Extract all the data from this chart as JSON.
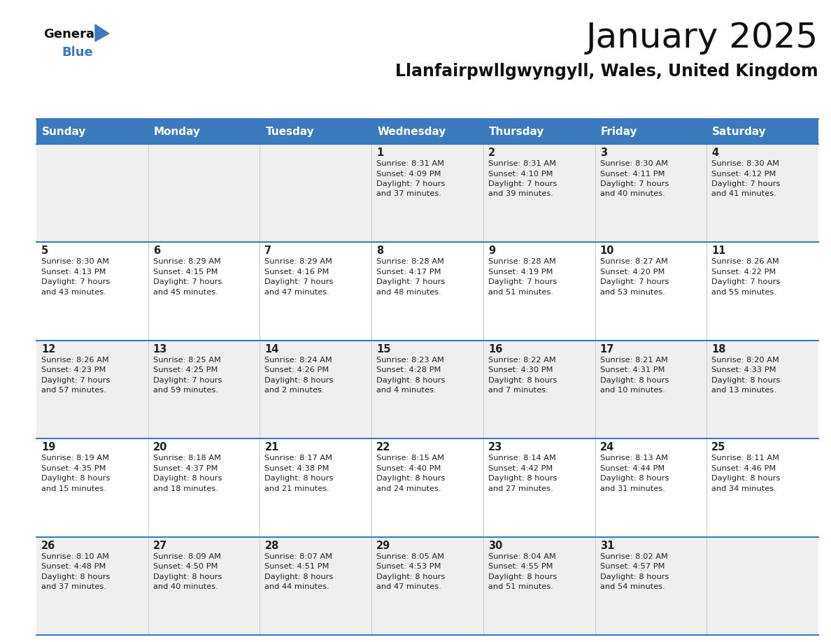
{
  "title": "January 2025",
  "subtitle": "Llanfairpwllgwyngyll, Wales, United Kingdom",
  "header_bg": "#3a7bbf",
  "header_text": "#ffffff",
  "day_names": [
    "Sunday",
    "Monday",
    "Tuesday",
    "Wednesday",
    "Thursday",
    "Friday",
    "Saturday"
  ],
  "row_bg_odd": "#efefef",
  "row_bg_even": "#ffffff",
  "cell_text_color": "#222222",
  "border_color": "#3a7bbf",
  "logo_color": "#3a7bbf",
  "days": [
    {
      "day": 1,
      "col": 3,
      "row": 0,
      "sunrise": "8:31 AM",
      "sunset": "4:09 PM",
      "daylight_h": "7 hours",
      "daylight_m": "and 37 minutes."
    },
    {
      "day": 2,
      "col": 4,
      "row": 0,
      "sunrise": "8:31 AM",
      "sunset": "4:10 PM",
      "daylight_h": "7 hours",
      "daylight_m": "and 39 minutes."
    },
    {
      "day": 3,
      "col": 5,
      "row": 0,
      "sunrise": "8:30 AM",
      "sunset": "4:11 PM",
      "daylight_h": "7 hours",
      "daylight_m": "and 40 minutes."
    },
    {
      "day": 4,
      "col": 6,
      "row": 0,
      "sunrise": "8:30 AM",
      "sunset": "4:12 PM",
      "daylight_h": "7 hours",
      "daylight_m": "and 41 minutes."
    },
    {
      "day": 5,
      "col": 0,
      "row": 1,
      "sunrise": "8:30 AM",
      "sunset": "4:13 PM",
      "daylight_h": "7 hours",
      "daylight_m": "and 43 minutes."
    },
    {
      "day": 6,
      "col": 1,
      "row": 1,
      "sunrise": "8:29 AM",
      "sunset": "4:15 PM",
      "daylight_h": "7 hours",
      "daylight_m": "and 45 minutes."
    },
    {
      "day": 7,
      "col": 2,
      "row": 1,
      "sunrise": "8:29 AM",
      "sunset": "4:16 PM",
      "daylight_h": "7 hours",
      "daylight_m": "and 47 minutes."
    },
    {
      "day": 8,
      "col": 3,
      "row": 1,
      "sunrise": "8:28 AM",
      "sunset": "4:17 PM",
      "daylight_h": "7 hours",
      "daylight_m": "and 48 minutes."
    },
    {
      "day": 9,
      "col": 4,
      "row": 1,
      "sunrise": "8:28 AM",
      "sunset": "4:19 PM",
      "daylight_h": "7 hours",
      "daylight_m": "and 51 minutes."
    },
    {
      "day": 10,
      "col": 5,
      "row": 1,
      "sunrise": "8:27 AM",
      "sunset": "4:20 PM",
      "daylight_h": "7 hours",
      "daylight_m": "and 53 minutes."
    },
    {
      "day": 11,
      "col": 6,
      "row": 1,
      "sunrise": "8:26 AM",
      "sunset": "4:22 PM",
      "daylight_h": "7 hours",
      "daylight_m": "and 55 minutes."
    },
    {
      "day": 12,
      "col": 0,
      "row": 2,
      "sunrise": "8:26 AM",
      "sunset": "4:23 PM",
      "daylight_h": "7 hours",
      "daylight_m": "and 57 minutes."
    },
    {
      "day": 13,
      "col": 1,
      "row": 2,
      "sunrise": "8:25 AM",
      "sunset": "4:25 PM",
      "daylight_h": "7 hours",
      "daylight_m": "and 59 minutes."
    },
    {
      "day": 14,
      "col": 2,
      "row": 2,
      "sunrise": "8:24 AM",
      "sunset": "4:26 PM",
      "daylight_h": "8 hours",
      "daylight_m": "and 2 minutes."
    },
    {
      "day": 15,
      "col": 3,
      "row": 2,
      "sunrise": "8:23 AM",
      "sunset": "4:28 PM",
      "daylight_h": "8 hours",
      "daylight_m": "and 4 minutes."
    },
    {
      "day": 16,
      "col": 4,
      "row": 2,
      "sunrise": "8:22 AM",
      "sunset": "4:30 PM",
      "daylight_h": "8 hours",
      "daylight_m": "and 7 minutes."
    },
    {
      "day": 17,
      "col": 5,
      "row": 2,
      "sunrise": "8:21 AM",
      "sunset": "4:31 PM",
      "daylight_h": "8 hours",
      "daylight_m": "and 10 minutes."
    },
    {
      "day": 18,
      "col": 6,
      "row": 2,
      "sunrise": "8:20 AM",
      "sunset": "4:33 PM",
      "daylight_h": "8 hours",
      "daylight_m": "and 13 minutes."
    },
    {
      "day": 19,
      "col": 0,
      "row": 3,
      "sunrise": "8:19 AM",
      "sunset": "4:35 PM",
      "daylight_h": "8 hours",
      "daylight_m": "and 15 minutes."
    },
    {
      "day": 20,
      "col": 1,
      "row": 3,
      "sunrise": "8:18 AM",
      "sunset": "4:37 PM",
      "daylight_h": "8 hours",
      "daylight_m": "and 18 minutes."
    },
    {
      "day": 21,
      "col": 2,
      "row": 3,
      "sunrise": "8:17 AM",
      "sunset": "4:38 PM",
      "daylight_h": "8 hours",
      "daylight_m": "and 21 minutes."
    },
    {
      "day": 22,
      "col": 3,
      "row": 3,
      "sunrise": "8:15 AM",
      "sunset": "4:40 PM",
      "daylight_h": "8 hours",
      "daylight_m": "and 24 minutes."
    },
    {
      "day": 23,
      "col": 4,
      "row": 3,
      "sunrise": "8:14 AM",
      "sunset": "4:42 PM",
      "daylight_h": "8 hours",
      "daylight_m": "and 27 minutes."
    },
    {
      "day": 24,
      "col": 5,
      "row": 3,
      "sunrise": "8:13 AM",
      "sunset": "4:44 PM",
      "daylight_h": "8 hours",
      "daylight_m": "and 31 minutes."
    },
    {
      "day": 25,
      "col": 6,
      "row": 3,
      "sunrise": "8:11 AM",
      "sunset": "4:46 PM",
      "daylight_h": "8 hours",
      "daylight_m": "and 34 minutes."
    },
    {
      "day": 26,
      "col": 0,
      "row": 4,
      "sunrise": "8:10 AM",
      "sunset": "4:48 PM",
      "daylight_h": "8 hours",
      "daylight_m": "and 37 minutes."
    },
    {
      "day": 27,
      "col": 1,
      "row": 4,
      "sunrise": "8:09 AM",
      "sunset": "4:50 PM",
      "daylight_h": "8 hours",
      "daylight_m": "and 40 minutes."
    },
    {
      "day": 28,
      "col": 2,
      "row": 4,
      "sunrise": "8:07 AM",
      "sunset": "4:51 PM",
      "daylight_h": "8 hours",
      "daylight_m": "and 44 minutes."
    },
    {
      "day": 29,
      "col": 3,
      "row": 4,
      "sunrise": "8:05 AM",
      "sunset": "4:53 PM",
      "daylight_h": "8 hours",
      "daylight_m": "and 47 minutes."
    },
    {
      "day": 30,
      "col": 4,
      "row": 4,
      "sunrise": "8:04 AM",
      "sunset": "4:55 PM",
      "daylight_h": "8 hours",
      "daylight_m": "and 51 minutes."
    },
    {
      "day": 31,
      "col": 5,
      "row": 4,
      "sunrise": "8:02 AM",
      "sunset": "4:57 PM",
      "daylight_h": "8 hours",
      "daylight_m": "and 54 minutes."
    }
  ]
}
